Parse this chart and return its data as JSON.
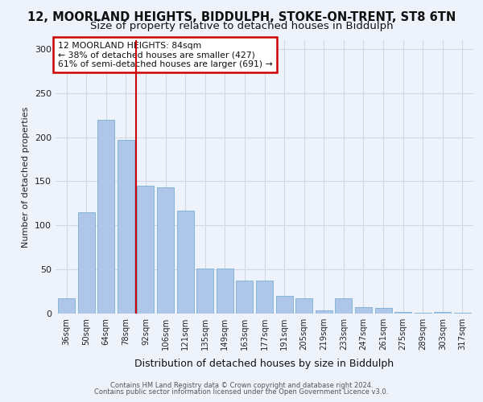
{
  "title": "12, MOORLAND HEIGHTS, BIDDULPH, STOKE-ON-TRENT, ST8 6TN",
  "subtitle": "Size of property relative to detached houses in Biddulph",
  "xlabel": "Distribution of detached houses by size in Biddulph",
  "ylabel": "Number of detached properties",
  "footnote1": "Contains HM Land Registry data © Crown copyright and database right 2024.",
  "footnote2": "Contains public sector information licensed under the Open Government Licence v3.0.",
  "categories": [
    "36sqm",
    "50sqm",
    "64sqm",
    "78sqm",
    "92sqm",
    "106sqm",
    "121sqm",
    "135sqm",
    "149sqm",
    "163sqm",
    "177sqm",
    "191sqm",
    "205sqm",
    "219sqm",
    "233sqm",
    "247sqm",
    "261sqm",
    "275sqm",
    "289sqm",
    "303sqm",
    "317sqm"
  ],
  "values": [
    17,
    115,
    220,
    197,
    145,
    143,
    117,
    51,
    51,
    37,
    37,
    20,
    17,
    4,
    17,
    7,
    6,
    2,
    1,
    2,
    1
  ],
  "bar_color": "#aec6e8",
  "bar_edge_color": "#7aafd4",
  "grid_color": "#d0d8e8",
  "vline_x": 3.5,
  "vline_color": "#cc0000",
  "property_label": "12 MOORLAND HEIGHTS: 84sqm",
  "annotation_line1": "← 38% of detached houses are smaller (427)",
  "annotation_line2": "61% of semi-detached houses are larger (691) →",
  "annotation_box_color": "#ffffff",
  "annotation_box_edge": "#cc0000",
  "ylim": [
    0,
    310
  ],
  "yticks": [
    0,
    50,
    100,
    150,
    200,
    250,
    300
  ],
  "bg_color": "#eef2fb",
  "title_fontsize": 10.5,
  "subtitle_fontsize": 9.5
}
